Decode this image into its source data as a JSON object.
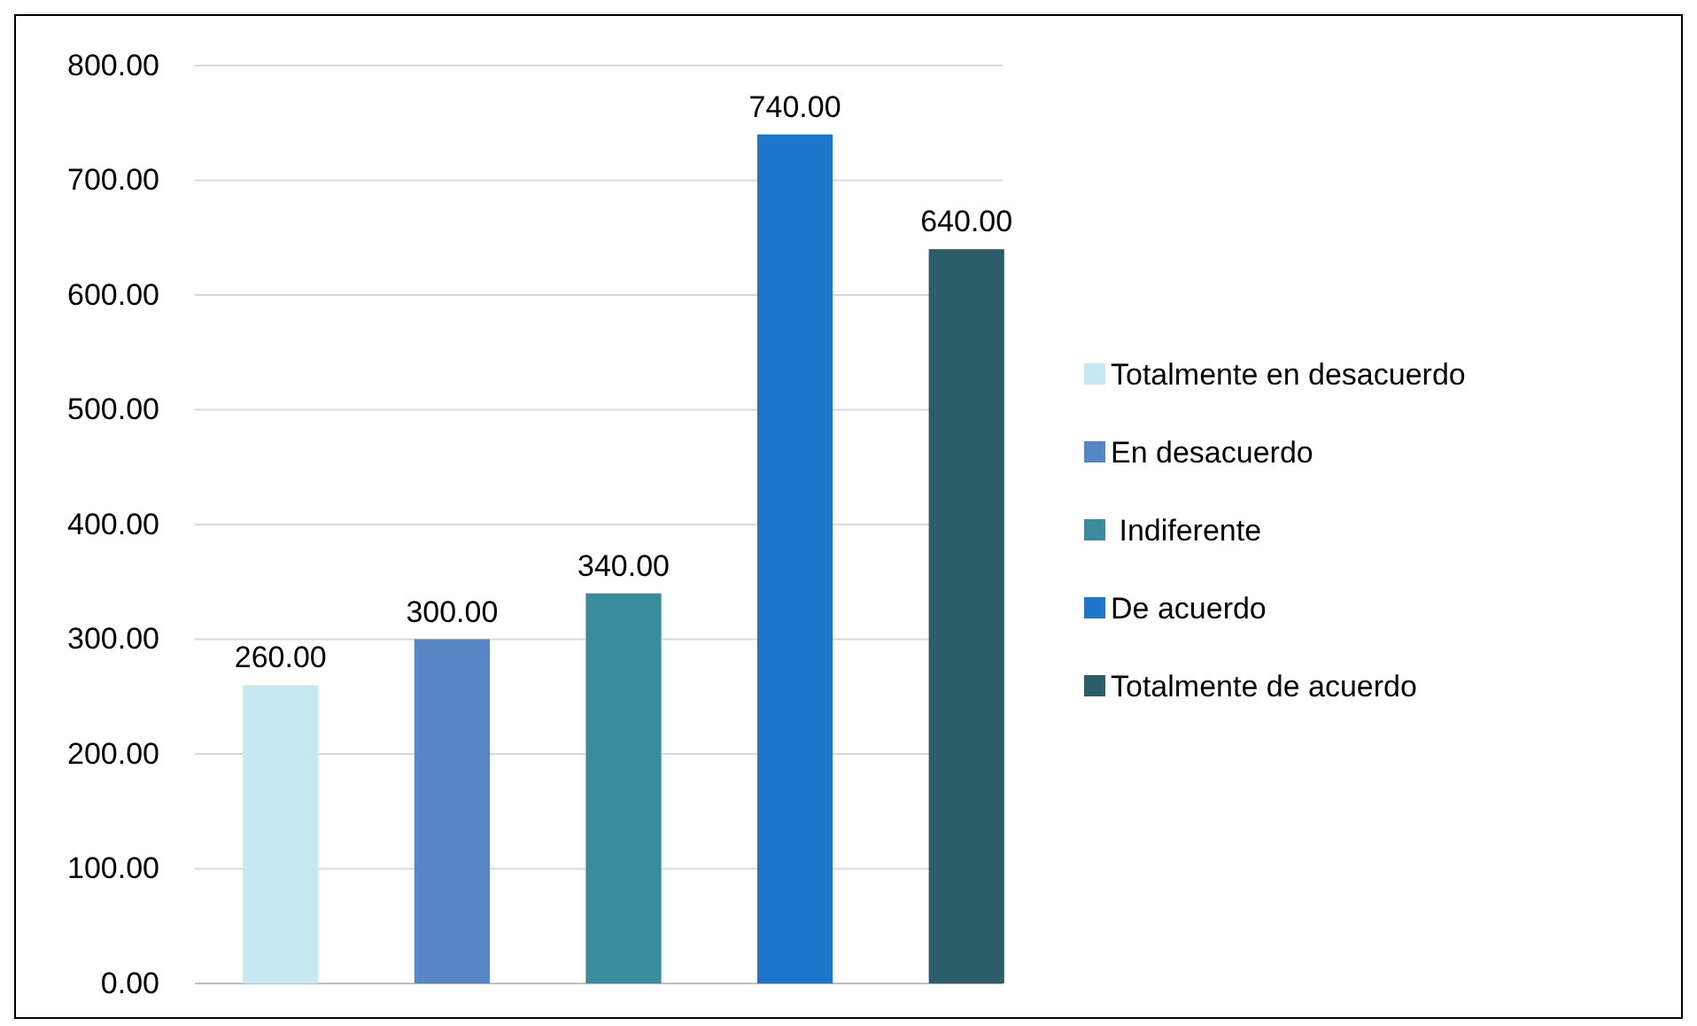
{
  "chart_data": {
    "type": "bar",
    "categories": [
      null,
      null,
      null,
      null,
      null
    ],
    "series": [
      {
        "name": "Totalmente en desacuerdo",
        "color": "#c6e9f1",
        "values": [
          260,
          null,
          null,
          null,
          null
        ],
        "value_labels": [
          "260.00",
          null,
          null,
          null,
          null
        ]
      },
      {
        "name": "En desacuerdo",
        "color": "#5686c6",
        "values": [
          null,
          300,
          null,
          null,
          null
        ],
        "value_labels": [
          null,
          "300.00",
          null,
          null,
          null
        ]
      },
      {
        "name": " Indiferente",
        "color": "#3a8b9c",
        "values": [
          null,
          null,
          340,
          null,
          null
        ],
        "value_labels": [
          null,
          null,
          "340.00",
          null,
          null
        ]
      },
      {
        "name": "De acuerdo",
        "color": "#1c76c9",
        "values": [
          null,
          null,
          null,
          740,
          null
        ],
        "value_labels": [
          null,
          null,
          null,
          "740.00",
          null
        ]
      },
      {
        "name": "Totalmente de acuerdo",
        "color": "#2b5e69",
        "values": [
          null,
          null,
          null,
          null,
          640
        ],
        "value_labels": [
          null,
          null,
          null,
          null,
          "640.00"
        ]
      }
    ],
    "ylim": [
      0,
      800
    ],
    "yticks": [
      {
        "value": 0,
        "label": "0.00"
      },
      {
        "value": 100,
        "label": "100.00"
      },
      {
        "value": 200,
        "label": "200.00"
      },
      {
        "value": 300,
        "label": "300.00"
      },
      {
        "value": 400,
        "label": "400.00"
      },
      {
        "value": 500,
        "label": "500.00"
      },
      {
        "value": 600,
        "label": "600.00"
      },
      {
        "value": 700,
        "label": "700.00"
      },
      {
        "value": 800,
        "label": "800.00"
      }
    ],
    "grid": "y",
    "legend": "right"
  }
}
